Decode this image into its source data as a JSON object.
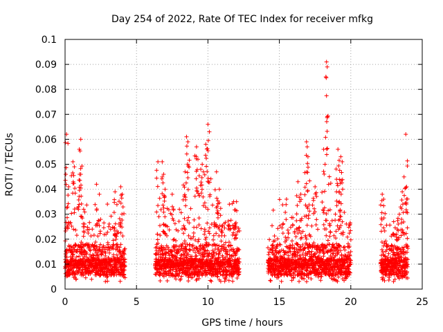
{
  "chart_data": {
    "type": "scatter",
    "title": "Day 254 of 2022, Rate Of TEC Index for receiver mfkg",
    "xlabel": "GPS time / hours",
    "ylabel": "ROTI / TECUs",
    "xlim": [
      0,
      25
    ],
    "ylim": [
      0,
      0.1
    ],
    "x_ticks": [
      "0",
      "5",
      "10",
      "15",
      "20",
      "25"
    ],
    "y_ticks": [
      "0",
      "0.01",
      "0.02",
      "0.03",
      "0.04",
      "0.05",
      "0.06",
      "0.07",
      "0.08",
      "0.09",
      "0.1"
    ],
    "grid": true,
    "marker": "+",
    "color": "#ff0000",
    "data_segments": [
      {
        "start": 0.0,
        "end": 4.2,
        "peaks": [
          [
            0.1,
            0.062
          ],
          [
            0.05,
            0.046
          ],
          [
            0.25,
            0.041
          ],
          [
            0.55,
            0.051
          ],
          [
            0.65,
            0.049
          ],
          [
            1.1,
            0.06
          ],
          [
            1.0,
            0.056
          ],
          [
            1.1,
            0.046
          ],
          [
            1.3,
            0.032
          ],
          [
            2.2,
            0.042
          ],
          [
            2.4,
            0.038
          ],
          [
            3.5,
            0.039
          ],
          [
            3.9,
            0.041
          ],
          [
            4.0,
            0.038
          ]
        ]
      },
      {
        "start": 6.3,
        "end": 12.2,
        "peaks": [
          [
            6.5,
            0.051
          ],
          [
            6.8,
            0.051
          ],
          [
            6.9,
            0.046
          ],
          [
            7.0,
            0.04
          ],
          [
            7.5,
            0.038
          ],
          [
            8.5,
            0.061
          ],
          [
            8.6,
            0.059
          ],
          [
            8.4,
            0.047
          ],
          [
            9.2,
            0.057
          ],
          [
            9.3,
            0.052
          ],
          [
            9.5,
            0.048
          ],
          [
            9.6,
            0.05
          ],
          [
            9.85,
            0.058
          ],
          [
            10.0,
            0.066
          ],
          [
            10.1,
            0.063
          ],
          [
            10.6,
            0.047
          ],
          [
            10.8,
            0.04
          ],
          [
            11.5,
            0.034
          ],
          [
            11.8,
            0.035
          ],
          [
            12.0,
            0.035
          ]
        ]
      },
      {
        "start": 14.2,
        "end": 20.0,
        "peaks": [
          [
            15.5,
            0.036
          ],
          [
            16.3,
            0.043
          ],
          [
            16.5,
            0.038
          ],
          [
            16.9,
            0.059
          ],
          [
            16.95,
            0.057
          ],
          [
            17.0,
            0.053
          ],
          [
            17.5,
            0.041
          ],
          [
            18.1,
            0.056
          ],
          [
            18.2,
            0.05
          ],
          [
            18.3,
            0.091
          ],
          [
            18.35,
            0.089
          ],
          [
            18.5,
            0.045
          ],
          [
            19.1,
            0.056
          ],
          [
            19.3,
            0.053
          ],
          [
            19.4,
            0.051
          ],
          [
            19.0,
            0.044
          ],
          [
            19.2,
            0.035
          ]
        ]
      },
      {
        "start": 22.1,
        "end": 24.0,
        "peaks": [
          [
            22.2,
            0.038
          ],
          [
            22.3,
            0.036
          ],
          [
            23.0,
            0.027
          ],
          [
            23.2,
            0.022
          ],
          [
            23.6,
            0.039
          ],
          [
            23.85,
            0.062
          ],
          [
            23.9,
            0.041
          ],
          [
            23.4,
            0.03
          ]
        ]
      }
    ]
  }
}
